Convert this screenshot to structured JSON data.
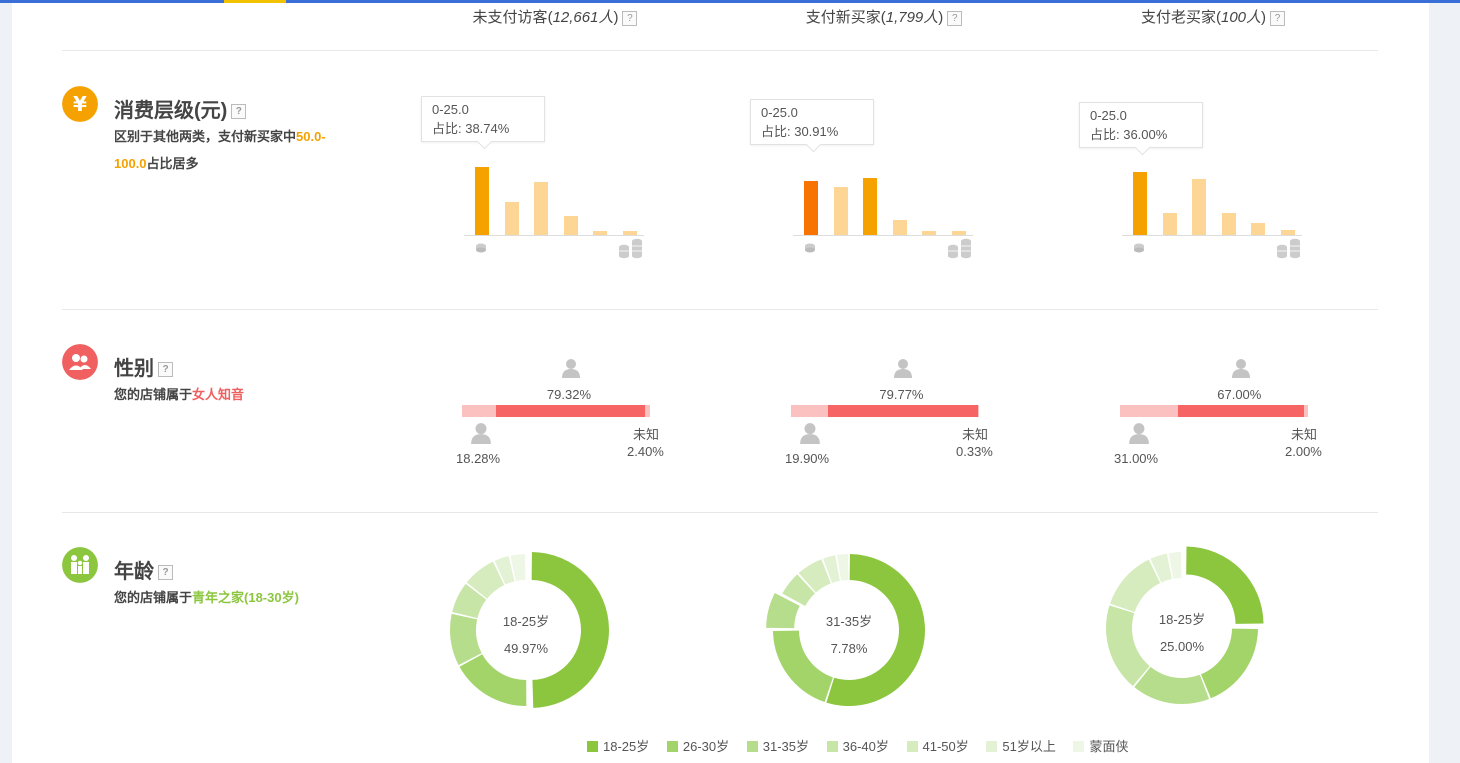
{
  "columns": [
    {
      "label": "未支付访客",
      "count": "12,661人"
    },
    {
      "label": "支付新买家",
      "count": "1,799人"
    },
    {
      "label": "支付老买家",
      "count": "100人"
    }
  ],
  "help_mark": "?",
  "spend": {
    "title": "消费层级(元)",
    "desc_prefix": "区别于其他两类，支付新买家中",
    "desc_highlight": "50.0-100.0",
    "desc_suffix": "占比居多",
    "icon": "yen-icon",
    "charts": [
      {
        "tooltip_range": "0-25.0",
        "tooltip_label": "占比:",
        "tooltip_value": "38.74%",
        "values": [
          38.74,
          19.0,
          30.0,
          11.0,
          2.5,
          2.5
        ],
        "highlight": 0
      },
      {
        "tooltip_range": "0-25.0",
        "tooltip_label": "占比:",
        "tooltip_value": "30.91%",
        "values": [
          30.91,
          27.5,
          32.5,
          8.5,
          2.4,
          2.0
        ],
        "highlight": 0
      },
      {
        "tooltip_range": "0-25.0",
        "tooltip_label": "占比:",
        "tooltip_value": "36.00%",
        "values": [
          36.0,
          12.5,
          32.0,
          12.5,
          7.0,
          3.0
        ],
        "highlight": 0
      }
    ]
  },
  "gender": {
    "title": "性别",
    "desc_prefix": "您的店铺属于",
    "desc_highlight": "女人知音",
    "icon": "people-icon",
    "unknown_label": "未知",
    "stats": [
      {
        "female": 79.32,
        "female_label": "79.32%",
        "male": 18.28,
        "male_label": "18.28%",
        "unknown": 2.4,
        "unknown_label": "2.40%"
      },
      {
        "female": 79.77,
        "female_label": "79.77%",
        "male": 19.9,
        "male_label": "19.90%",
        "unknown": 0.33,
        "unknown_label": "0.33%"
      },
      {
        "female": 67.0,
        "female_label": "67.00%",
        "male": 31.0,
        "male_label": "31.00%",
        "unknown": 2.0,
        "unknown_label": "2.00%"
      }
    ]
  },
  "age": {
    "title": "年龄",
    "desc_prefix": "您的店铺属于",
    "desc_highlight": "青年之家(18-30岁)",
    "icon": "family-icon",
    "legend": [
      "18-25岁",
      "26-30岁",
      "31-35岁",
      "36-40岁",
      "41-50岁",
      "51岁以上",
      "蒙面侠"
    ],
    "colors": [
      "#8cc63f",
      "#a3d46a",
      "#b6dd8c",
      "#c6e5a6",
      "#d6ecbf",
      "#e3f2d4",
      "#eef6e5"
    ],
    "donuts": [
      {
        "center_label": "18-25岁",
        "center_value": "49.97%",
        "values": [
          49.97,
          17.5,
          11.5,
          7.0,
          7.5,
          3.5,
          3.5
        ],
        "explode": 0
      },
      {
        "center_label": "31-35岁",
        "center_value": "7.78%",
        "values": [
          55.0,
          20.0,
          7.78,
          5.5,
          6.0,
          3.0,
          2.72
        ],
        "explode": 2
      },
      {
        "center_label": "18-25岁",
        "center_value": "25.00%",
        "values": [
          25.0,
          19.0,
          17.0,
          19.0,
          13.0,
          4.0,
          3.0
        ],
        "explode": 0
      }
    ]
  },
  "chart_data": [
    {
      "type": "bar",
      "title": "消费层级(元)",
      "series": [
        {
          "name": "未支付访客",
          "values": [
            38.74,
            19.0,
            30.0,
            11.0,
            2.5,
            2.5
          ]
        },
        {
          "name": "支付新买家",
          "values": [
            30.91,
            27.5,
            32.5,
            8.5,
            2.4,
            2.0
          ]
        },
        {
          "name": "支付老买家",
          "values": [
            36.0,
            12.5,
            32.0,
            12.5,
            7.0,
            3.0
          ]
        }
      ],
      "categories": [
        "0-25.0",
        "",
        "",
        "",
        "",
        ""
      ]
    },
    {
      "type": "pie",
      "title": "年龄",
      "categories": [
        "18-25岁",
        "26-30岁",
        "31-35岁",
        "36-40岁",
        "41-50岁",
        "51岁以上",
        "蒙面侠"
      ],
      "series": [
        {
          "name": "未支付访客",
          "values": [
            49.97,
            17.5,
            11.5,
            7.0,
            7.5,
            3.5,
            3.5
          ]
        },
        {
          "name": "支付新买家",
          "values": [
            55.0,
            20.0,
            7.78,
            5.5,
            6.0,
            3.0,
            2.72
          ]
        },
        {
          "name": "支付老买家",
          "values": [
            25.0,
            19.0,
            17.0,
            19.0,
            13.0,
            4.0,
            3.0
          ]
        }
      ]
    }
  ]
}
